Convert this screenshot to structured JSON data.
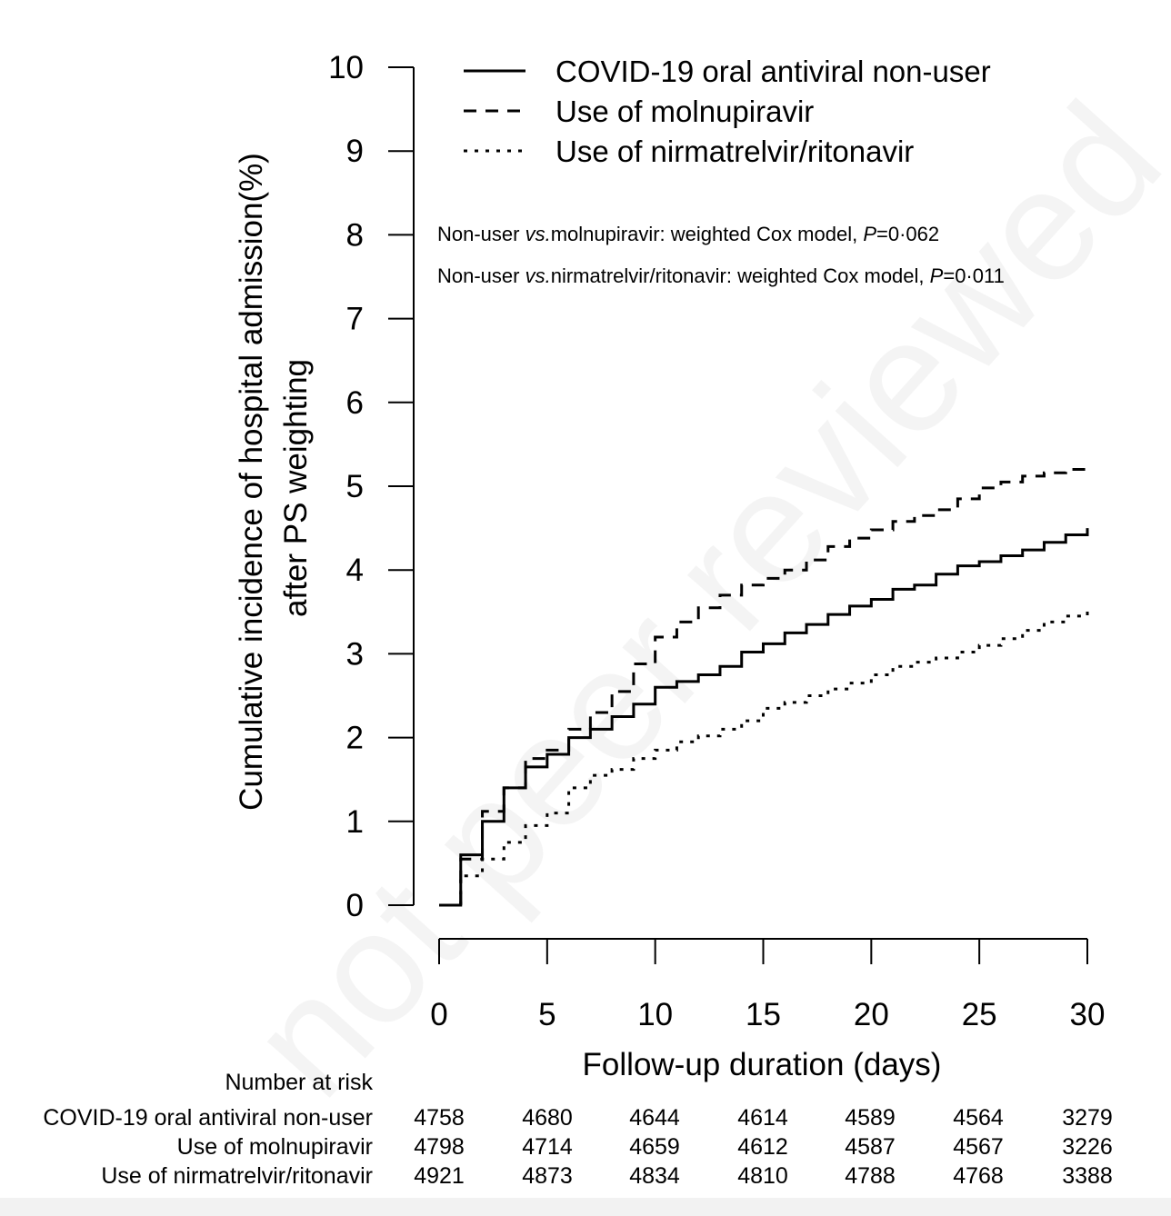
{
  "watermark": "not peer reviewed",
  "chart_data": {
    "type": "line",
    "ylabel": "Cumulative incidence of hospital admission(%)",
    "ylabel2": "after PS weighting",
    "xlabel": "Follow-up duration (days)",
    "xlim": [
      0,
      30
    ],
    "ylim": [
      0,
      10
    ],
    "xticks": [
      "0",
      "5",
      "10",
      "15",
      "20",
      "25",
      "30"
    ],
    "yticks": [
      "0",
      "1",
      "2",
      "3",
      "4",
      "5",
      "6",
      "7",
      "8",
      "9",
      "10"
    ],
    "legend_position": "top",
    "annotations": [
      {
        "prefix": "Non-user ",
        "italic": "vs.",
        "mid": "molnupiravir: weighted Cox model, ",
        "p": "P",
        "suffix": "=0·062"
      },
      {
        "prefix": "Non-user ",
        "italic": "vs.",
        "mid": "nirmatrelvir/ritonavir: weighted Cox model, ",
        "p": "P",
        "suffix": "=0·011"
      }
    ],
    "series": [
      {
        "name": "COVID-19 oral antiviral non-user",
        "style": "solid",
        "color": "#000000",
        "x": [
          0,
          1,
          2,
          3,
          4,
          5,
          6,
          7,
          8,
          9,
          10,
          11,
          12,
          13,
          14,
          15,
          16,
          17,
          18,
          19,
          20,
          21,
          22,
          23,
          24,
          25,
          26,
          27,
          28,
          29,
          30
        ],
        "y": [
          0,
          0.6,
          1.0,
          1.4,
          1.65,
          1.8,
          2.0,
          2.1,
          2.25,
          2.4,
          2.6,
          2.67,
          2.75,
          2.85,
          3.02,
          3.12,
          3.25,
          3.35,
          3.47,
          3.57,
          3.65,
          3.77,
          3.82,
          3.95,
          4.05,
          4.1,
          4.17,
          4.24,
          4.33,
          4.42,
          4.5
        ]
      },
      {
        "name": "Use of molnupiravir",
        "style": "dashed",
        "color": "#000000",
        "x": [
          0,
          1,
          2,
          3,
          4,
          5,
          6,
          7,
          8,
          9,
          10,
          11,
          12,
          13,
          14,
          15,
          16,
          17,
          18,
          19,
          20,
          21,
          22,
          23,
          24,
          25,
          26,
          27,
          28,
          29,
          30
        ],
        "y": [
          0,
          0.55,
          1.12,
          1.4,
          1.75,
          1.85,
          2.1,
          2.3,
          2.55,
          2.88,
          3.2,
          3.38,
          3.55,
          3.7,
          3.82,
          3.9,
          4.0,
          4.12,
          4.28,
          4.38,
          4.48,
          4.58,
          4.65,
          4.72,
          4.85,
          4.98,
          5.05,
          5.12,
          5.16,
          5.2,
          5.2
        ]
      },
      {
        "name": "Use of nirmatrelvir/ritonavir",
        "style": "dotted",
        "color": "#000000",
        "x": [
          0,
          1,
          2,
          3,
          4,
          5,
          6,
          7,
          8,
          9,
          10,
          11,
          12,
          13,
          14,
          15,
          16,
          17,
          18,
          19,
          20,
          21,
          22,
          23,
          24,
          25,
          26,
          27,
          28,
          29,
          30
        ],
        "y": [
          0,
          0.35,
          0.55,
          0.75,
          0.95,
          1.1,
          1.4,
          1.55,
          1.62,
          1.75,
          1.85,
          1.95,
          2.02,
          2.1,
          2.2,
          2.35,
          2.42,
          2.5,
          2.58,
          2.65,
          2.75,
          2.85,
          2.9,
          2.95,
          3.02,
          3.1,
          3.18,
          3.28,
          3.38,
          3.45,
          3.55
        ]
      }
    ],
    "risk_table": {
      "title": "Number at risk",
      "rows": [
        {
          "label": "COVID-19 oral antiviral non-user",
          "values": [
            "4758",
            "4680",
            "4644",
            "4614",
            "4589",
            "4564",
            "3279"
          ]
        },
        {
          "label": "Use of molnupiravir",
          "values": [
            "4798",
            "4714",
            "4659",
            "4612",
            "4587",
            "4567",
            "3226"
          ]
        },
        {
          "label": "Use of nirmatrelvir/ritonavir",
          "values": [
            "4921",
            "4873",
            "4834",
            "4810",
            "4788",
            "4768",
            "3388"
          ]
        }
      ]
    }
  }
}
